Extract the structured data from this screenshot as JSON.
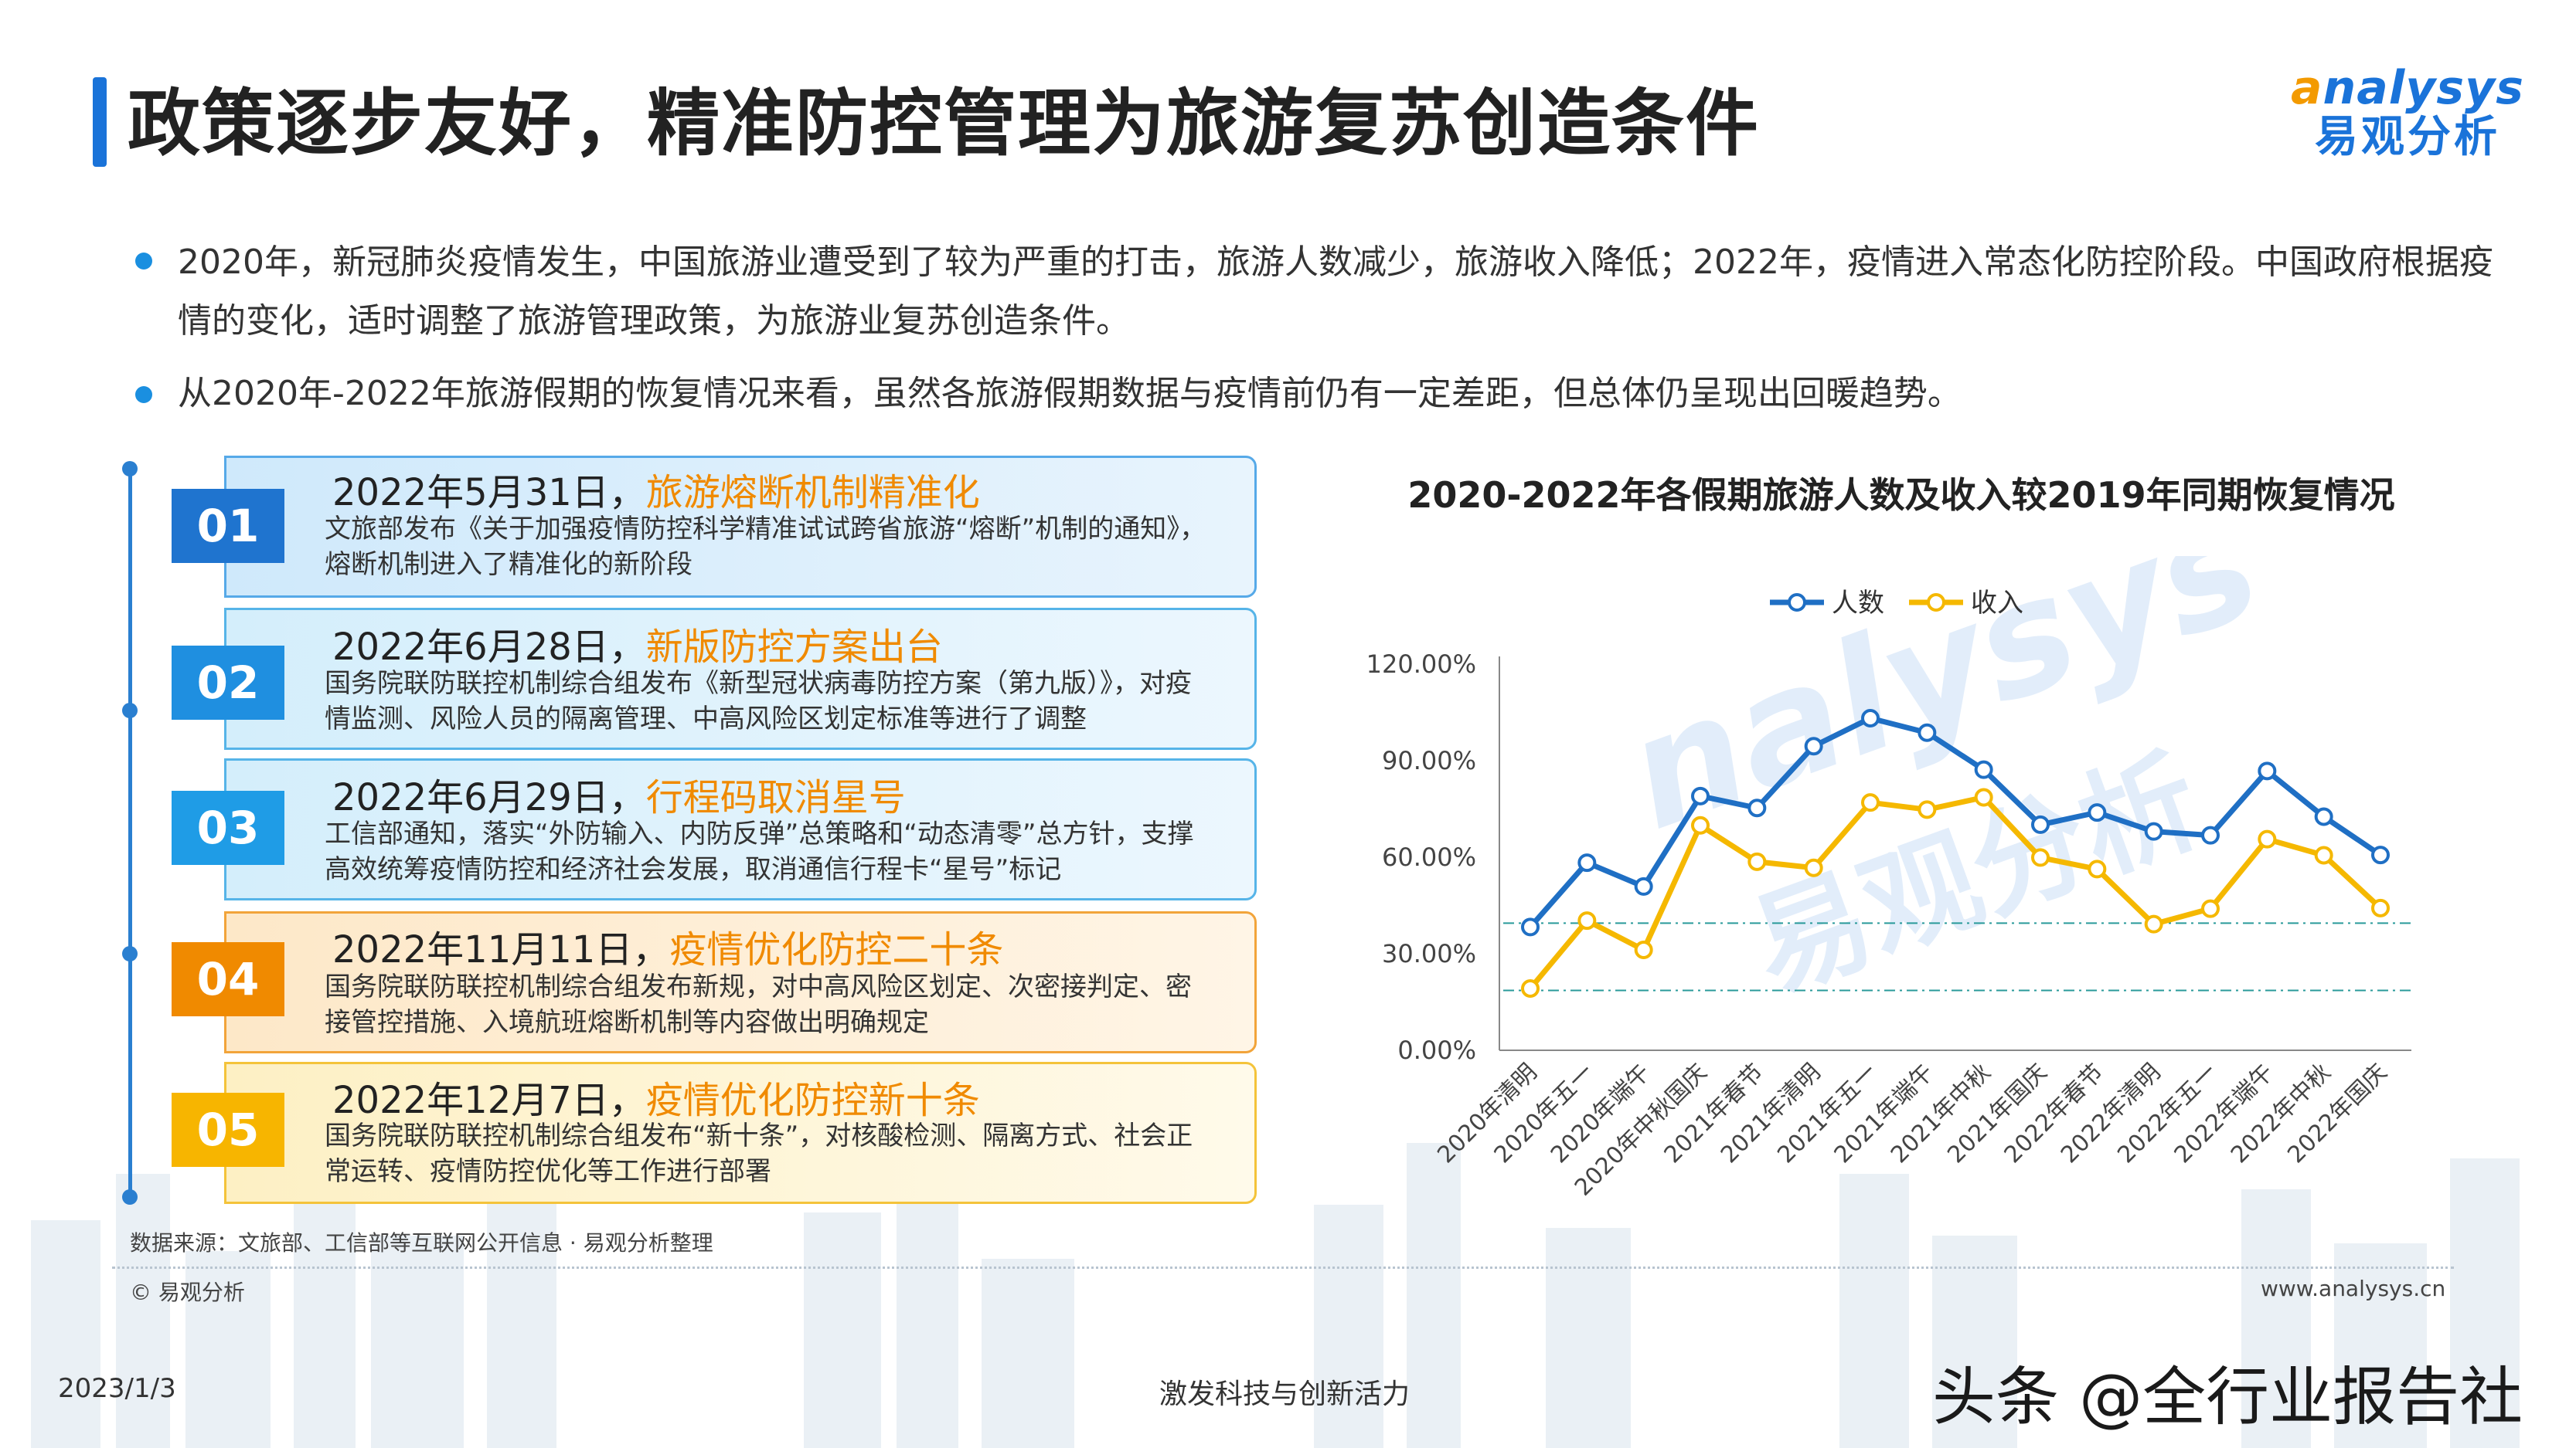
{
  "header": {
    "title": "政策逐步友好，精准防控管理为旅游复苏创造条件",
    "logo_en_mark": "a",
    "logo_en": "nalysys",
    "logo_cn": "易观分析"
  },
  "bullets": [
    "2020年，新冠肺炎疫情发生，中国旅游业遭受到了较为严重的打击，旅游人数减少，旅游收入降低；2022年，疫情进入常态化防控阶段。中国政府根据疫情的变化，适时调整了旅游管理政策，为旅游业复苏创造条件。",
    "从2020年-2022年旅游假期的恢复情况来看，虽然各旅游假期数据与疫情前仍有一定差距，但总体仍呈现出回暖趋势。"
  ],
  "timeline": [
    {
      "num": "01",
      "date": "2022年5月31日，",
      "headline": "旅游熔断机制精准化",
      "desc": "文旅部发布《关于加强疫情防控科学精准试试跨省旅游“熔断”机制的通知》，熔断机制进入了精准化的新阶段"
    },
    {
      "num": "02",
      "date": "2022年6月28日，",
      "headline": "新版防控方案出台",
      "desc": "国务院联防联控机制综合组发布《新型冠状病毒防控方案（第九版）》，对疫情监测、风险人员的隔离管理、中高风险区划定标准等进行了调整"
    },
    {
      "num": "03",
      "date": "2022年6月29日，",
      "headline": "行程码取消星号",
      "desc": "工信部通知，落实“外防输入、内防反弹”总策略和“动态清零”总方针，支撑高效统筹疫情防控和经济社会发展，取消通信行程卡“星号”标记"
    },
    {
      "num": "04",
      "date": "2022年11月11日，",
      "headline": "疫情优化防控二十条",
      "desc": "国务院联防联控机制综合组发布新规，对中高风险区划定、次密接判定、密接管控措施、入境航班熔断机制等内容做出明确规定"
    },
    {
      "num": "05",
      "date": "2022年12月7日，",
      "headline": "疫情优化防控新十条",
      "desc": "国务院联防联控机制综合组发布“新十条”，对核酸检测、隔离方式、社会正常运转、疫情防控优化等工作进行部署"
    }
  ],
  "chart_data": {
    "type": "line",
    "title": "2020-2022年各假期旅游人数及收入较2019年同期恢复情况",
    "categories": [
      "2020年清明",
      "2020年五一",
      "2020年端午",
      "2020年中秋国庆",
      "2021年春节",
      "2021年清明",
      "2021年五一",
      "2021年端午",
      "2021年中秋",
      "2021年国庆",
      "2022年春节",
      "2022年清明",
      "2022年五一",
      "2022年端午",
      "2022年中秋",
      "2022年国庆"
    ],
    "series": [
      {
        "name": "人数",
        "color": "#1f6fc4",
        "values": [
          38.3,
          58.3,
          50.9,
          79.0,
          75.3,
          94.5,
          103.2,
          98.7,
          87.2,
          70.1,
          73.9,
          68.0,
          66.8,
          86.8,
          72.6,
          60.7
        ]
      },
      {
        "name": "收入",
        "color": "#f5b800",
        "values": [
          19.2,
          40.3,
          31.2,
          69.9,
          58.6,
          56.7,
          77.0,
          74.8,
          78.6,
          59.9,
          56.3,
          39.2,
          44.0,
          65.6,
          60.6,
          44.2
        ]
      }
    ],
    "yticks": [
      "0.00%",
      "30.00%",
      "60.00%",
      "90.00%",
      "120.00%"
    ],
    "ylim": [
      0,
      120
    ],
    "reference_lines": [
      39.5,
      18.6
    ],
    "legend_position": "top"
  },
  "footer": {
    "source": "数据来源：文旅部、工信部等互联网公开信息 · 易观分析整理",
    "copyright": "© 易观分析",
    "website": "www.analysys.cn",
    "date": "2023/1/3",
    "slogan": "激发科技与创新活力",
    "watermark": "头条 @全行业报告社"
  }
}
